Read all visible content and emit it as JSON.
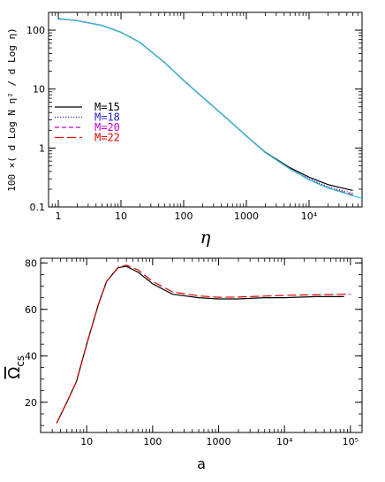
{
  "chart_data": [
    {
      "type": "line",
      "xscale": "log",
      "yscale": "log",
      "xlabel": "η",
      "ylabel": "100 ×( d Log N η² / d Log η)",
      "xlim": [
        0.7,
        70000
      ],
      "ylim": [
        0.1,
        200
      ],
      "xticks": [
        {
          "value": 1,
          "label": "1"
        },
        {
          "value": 10,
          "label": "10"
        },
        {
          "value": 100,
          "label": "100"
        },
        {
          "value": 1000,
          "label": "1000"
        },
        {
          "value": 10000,
          "label": "10⁴"
        }
      ],
      "yticks": [
        {
          "value": 0.1,
          "label": "0.1"
        },
        {
          "value": 1,
          "label": "1"
        },
        {
          "value": 10,
          "label": "10"
        },
        {
          "value": 100,
          "label": "100"
        }
      ],
      "legend": {
        "placement": "left",
        "entries": [
          {
            "label": "M=15",
            "color": "#000000",
            "dash": "solid"
          },
          {
            "label": "M=18",
            "color": "#2222cc",
            "dash": "dotted"
          },
          {
            "label": "M=20",
            "color": "#cc00cc",
            "dash": "dashed"
          },
          {
            "label": "M=22",
            "color": "#dd0000",
            "dash": "longdash"
          }
        ]
      },
      "series": [
        {
          "name": "M=15",
          "color": "#000000",
          "dash": "solid",
          "x": [
            1,
            1.05,
            2,
            5,
            10,
            20,
            50,
            100,
            200,
            500,
            1000,
            2000,
            5000,
            10000,
            20000,
            50000
          ],
          "y": [
            165,
            155,
            145,
            120,
            92,
            62,
            28,
            14,
            7.3,
            3.1,
            1.6,
            0.85,
            0.46,
            0.32,
            0.24,
            0.19
          ]
        },
        {
          "name": "M=18",
          "color": "#2222cc",
          "dash": "dotted",
          "x": [
            1,
            1.05,
            2,
            5,
            10,
            20,
            50,
            100,
            200,
            500,
            1000,
            2000,
            5000,
            10000,
            20000,
            50000
          ],
          "y": [
            165,
            155,
            145,
            120,
            92,
            62,
            28,
            14,
            7.3,
            3.1,
            1.6,
            0.84,
            0.44,
            0.3,
            0.22,
            0.17
          ]
        },
        {
          "name": "M=20",
          "color": "#cc00cc",
          "dash": "dashed",
          "x": [
            1,
            1.05,
            2,
            5,
            10,
            20,
            50,
            100,
            200,
            500,
            1000,
            2000,
            5000,
            10000,
            20000,
            50000
          ],
          "y": [
            165,
            155,
            145,
            120,
            92,
            62,
            28,
            14,
            7.3,
            3.1,
            1.6,
            0.84,
            0.44,
            0.29,
            0.21,
            0.16
          ]
        },
        {
          "name": "M=22",
          "color": "#dd0000",
          "dash": "longdash",
          "x": [
            1,
            1.05,
            2,
            5,
            10,
            20,
            50,
            100,
            200,
            500,
            1000,
            2000,
            5000,
            10000,
            20000,
            50000
          ],
          "y": [
            165,
            155,
            145,
            120,
            92,
            62,
            28,
            14,
            7.3,
            3.1,
            1.6,
            0.84,
            0.44,
            0.29,
            0.21,
            0.16
          ]
        },
        {
          "color": "#22c8e0",
          "dash": "solid",
          "x": [
            1,
            1.05,
            2,
            5,
            10,
            20,
            50,
            100,
            200,
            500,
            1000,
            2000,
            5000,
            10000,
            20000,
            50000,
            70000
          ],
          "y": [
            165,
            155,
            145,
            120,
            92,
            62,
            28,
            14,
            7.3,
            3.1,
            1.6,
            0.84,
            0.44,
            0.29,
            0.21,
            0.155,
            0.14
          ]
        }
      ]
    },
    {
      "type": "line",
      "xscale": "log",
      "yscale": "linear",
      "xlabel": "a",
      "ylabel": "Ω̄cs",
      "xlim": [
        2,
        150000
      ],
      "ylim": [
        7,
        82
      ],
      "xticks": [
        {
          "value": 10,
          "label": "10"
        },
        {
          "value": 100,
          "label": "100"
        },
        {
          "value": 1000,
          "label": "1000"
        },
        {
          "value": 10000,
          "label": "10⁴"
        },
        {
          "value": 100000,
          "label": "10⁵"
        }
      ],
      "yticks": [
        {
          "value": 20,
          "label": "20"
        },
        {
          "value": 40,
          "label": "40"
        },
        {
          "value": 60,
          "label": "60"
        },
        {
          "value": 80,
          "label": "80"
        }
      ],
      "series": [
        {
          "color": "#000000",
          "dash": "solid",
          "x": [
            3.5,
            5,
            7,
            10,
            15,
            20,
            30,
            40,
            60,
            100,
            200,
            500,
            1000,
            2000,
            5000,
            10000,
            30000,
            80000
          ],
          "y": [
            11,
            20,
            29,
            45,
            62,
            72,
            78,
            78.5,
            76,
            71,
            66.5,
            65,
            64.5,
            64.5,
            65,
            65,
            65.5,
            65.5
          ]
        },
        {
          "color": "#dd0000",
          "dash": "longdash",
          "x": [
            3.5,
            5,
            7,
            10,
            15,
            20,
            30,
            40,
            60,
            100,
            200,
            500,
            1000,
            2000,
            5000,
            10000,
            30000,
            100000
          ],
          "y": [
            11,
            20,
            29,
            45,
            62,
            72,
            78.2,
            79,
            77,
            72,
            67.5,
            65.8,
            65.2,
            65.3,
            65.7,
            66,
            66.3,
            66.5
          ]
        }
      ]
    }
  ]
}
